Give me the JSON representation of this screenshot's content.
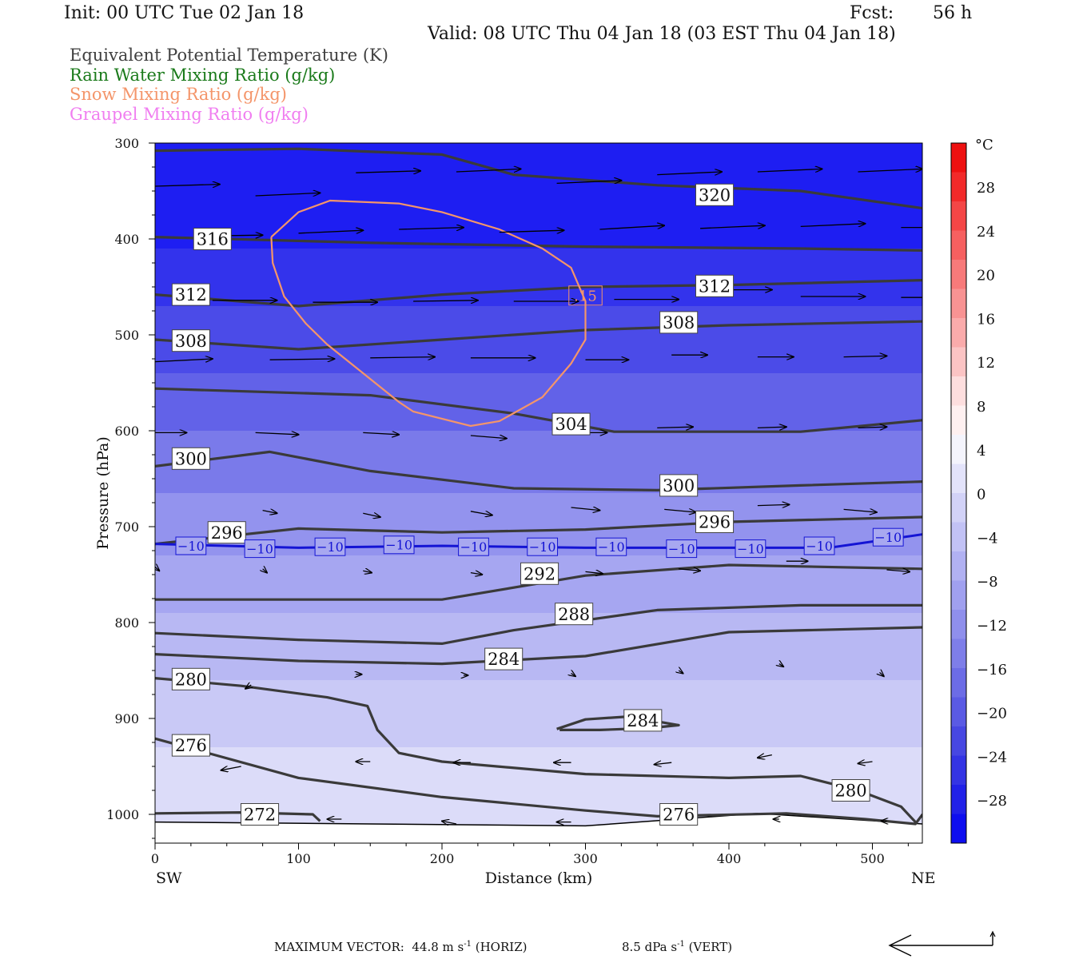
{
  "header": {
    "init": "Init: 00 UTC Tue 02 Jan 18",
    "fcst_label": "Fcst:",
    "fcst_value": "56 h",
    "valid": "Valid: 08 UTC Thu 04 Jan 18 (03 EST Thu 04 Jan 18)"
  },
  "legend": [
    {
      "label": "Equivalent Potential Temperature (K)",
      "color": "#404040"
    },
    {
      "label": "Rain Water Mixing Ratio (g/kg)",
      "color": "#1a7a1a"
    },
    {
      "label": "Snow Mixing Ratio (g/kg)",
      "color": "#f4956a"
    },
    {
      "label": "Graupel Mixing Ratio (g/kg)",
      "color": "#f07ef0"
    }
  ],
  "chart_data": {
    "type": "heatmap",
    "xlabel": "Distance (km)",
    "ylabel": "Pressure (hPa)",
    "xlim": [
      0,
      535
    ],
    "ylim": [
      1030,
      300
    ],
    "x_ticks": [
      "0",
      "100",
      "200",
      "300",
      "400",
      "500"
    ],
    "y_ticks": [
      "300",
      "400",
      "500",
      "600",
      "700",
      "800",
      "900",
      "1000"
    ],
    "left_endpoint": "SW",
    "right_endpoint": "NE",
    "colorbar": {
      "unit": "°C",
      "labels": [
        "28",
        "24",
        "20",
        "16",
        "12",
        "8",
        "4",
        "0",
        "−4",
        "−8",
        "−12",
        "−16",
        "−20",
        "−24",
        "−28"
      ],
      "colors": [
        "#ee1111",
        "#f22a2a",
        "#f44646",
        "#f66060",
        "#f77a7a",
        "#f89393",
        "#faabab",
        "#fbc4c4",
        "#fddede",
        "#fef0f0",
        "#f4f4fc",
        "#e3e3fa",
        "#d2d2f7",
        "#c2c2f5",
        "#b1b1f2",
        "#a0a0ef",
        "#8f8fec",
        "#7e7ee9",
        "#6c6ce6",
        "#5a5ae4",
        "#4747e2",
        "#3434e4",
        "#2121e8",
        "#0e0eef"
      ]
    },
    "background_layers": [
      {
        "p": 300,
        "color": "#1e1ef2"
      },
      {
        "p": 410,
        "color": "#3333ec"
      },
      {
        "p": 470,
        "color": "#4b4be8"
      },
      {
        "p": 540,
        "color": "#6262e8"
      },
      {
        "p": 600,
        "color": "#7a7aea"
      },
      {
        "p": 665,
        "color": "#9393ee"
      },
      {
        "p": 730,
        "color": "#a6a6f1"
      },
      {
        "p": 790,
        "color": "#b8b8f3"
      },
      {
        "p": 860,
        "color": "#c9c9f6"
      },
      {
        "p": 930,
        "color": "#dcdcf9"
      }
    ],
    "theta_e_contours": [
      {
        "value": "320",
        "points": [
          [
            0,
            308
          ],
          [
            100,
            306
          ],
          [
            200,
            312
          ],
          [
            250,
            333
          ],
          [
            350,
            344
          ],
          [
            450,
            350
          ],
          [
            535,
            368
          ]
        ],
        "labels": [
          [
            390,
            354
          ]
        ]
      },
      {
        "value": "316",
        "points": [
          [
            0,
            398
          ],
          [
            150,
            404
          ],
          [
            300,
            408
          ],
          [
            450,
            410
          ],
          [
            535,
            412
          ]
        ],
        "labels": [
          [
            40,
            400
          ]
        ]
      },
      {
        "value": "312",
        "points": [
          [
            0,
            458
          ],
          [
            100,
            470
          ],
          [
            200,
            458
          ],
          [
            300,
            450
          ],
          [
            400,
            448
          ],
          [
            535,
            443
          ]
        ],
        "labels": [
          [
            25,
            458
          ],
          [
            390,
            449
          ]
        ]
      },
      {
        "value": "308",
        "points": [
          [
            0,
            505
          ],
          [
            100,
            515
          ],
          [
            200,
            505
          ],
          [
            300,
            495
          ],
          [
            400,
            490
          ],
          [
            535,
            486
          ]
        ],
        "labels": [
          [
            25,
            506
          ],
          [
            365,
            487
          ]
        ]
      },
      {
        "value": "304",
        "points": [
          [
            0,
            556
          ],
          [
            150,
            563
          ],
          [
            250,
            582
          ],
          [
            320,
            601
          ],
          [
            450,
            601
          ],
          [
            535,
            589
          ]
        ],
        "labels": [
          [
            290,
            593
          ]
        ]
      },
      {
        "value": "300",
        "points": [
          [
            0,
            637
          ],
          [
            80,
            622
          ],
          [
            150,
            642
          ],
          [
            250,
            660
          ],
          [
            350,
            662
          ],
          [
            450,
            657
          ],
          [
            535,
            653
          ]
        ],
        "labels": [
          [
            25,
            629
          ],
          [
            365,
            657
          ]
        ]
      },
      {
        "value": "296",
        "points": [
          [
            0,
            718
          ],
          [
            100,
            702
          ],
          [
            200,
            706
          ],
          [
            300,
            703
          ],
          [
            400,
            695
          ],
          [
            535,
            690
          ]
        ],
        "labels": [
          [
            50,
            706
          ],
          [
            390,
            695
          ]
        ]
      },
      {
        "value": "292",
        "points": [
          [
            0,
            776
          ],
          [
            200,
            776
          ],
          [
            300,
            751
          ],
          [
            400,
            740
          ],
          [
            535,
            744
          ]
        ],
        "labels": [
          [
            268,
            749
          ]
        ]
      },
      {
        "value": "288",
        "points": [
          [
            0,
            811
          ],
          [
            100,
            818
          ],
          [
            200,
            822
          ],
          [
            250,
            808
          ],
          [
            350,
            787
          ],
          [
            450,
            782
          ],
          [
            535,
            782
          ]
        ],
        "labels": [
          [
            292,
            791
          ]
        ]
      },
      {
        "value": "284",
        "points": [
          [
            0,
            833
          ],
          [
            100,
            840
          ],
          [
            200,
            843
          ],
          [
            300,
            835
          ],
          [
            400,
            810
          ],
          [
            535,
            805
          ]
        ],
        "labels": [
          [
            243,
            838
          ]
        ]
      },
      {
        "value": "284",
        "points": [
          [
            280,
            911
          ],
          [
            300,
            901
          ],
          [
            330,
            898
          ],
          [
            365,
            907
          ],
          [
            345,
            910
          ],
          [
            310,
            912
          ],
          [
            282,
            912
          ]
        ],
        "labels": [
          [
            340,
            902
          ]
        ]
      },
      {
        "value": "280",
        "points": [
          [
            0,
            858
          ],
          [
            60,
            866
          ],
          [
            120,
            878
          ],
          [
            148,
            887
          ],
          [
            155,
            912
          ],
          [
            170,
            936
          ],
          [
            200,
            945
          ],
          [
            300,
            958
          ],
          [
            400,
            962
          ],
          [
            450,
            960
          ],
          [
            490,
            975
          ],
          [
            520,
            992
          ],
          [
            530,
            1008
          ]
        ],
        "labels": [
          [
            25,
            859
          ],
          [
            485,
            975
          ]
        ]
      },
      {
        "value": "276",
        "points": [
          [
            0,
            921
          ],
          [
            100,
            962
          ],
          [
            200,
            982
          ],
          [
            300,
            996
          ],
          [
            350,
            1002
          ],
          [
            440,
            999
          ],
          [
            495,
            1005
          ],
          [
            530,
            1010
          ],
          [
            535,
            1000
          ]
        ],
        "labels": [
          [
            25,
            928
          ],
          [
            365,
            1000
          ]
        ]
      },
      {
        "value": "272",
        "points": [
          [
            0,
            999
          ],
          [
            60,
            998
          ],
          [
            110,
            1000
          ],
          [
            115,
            1007
          ]
        ],
        "labels": [
          [
            73,
            1000
          ]
        ]
      }
    ],
    "temperature_contour": {
      "value": "−10",
      "color": "#1414d4",
      "points": [
        [
          0,
          718
        ],
        [
          100,
          722
        ],
        [
          200,
          720
        ],
        [
          300,
          722
        ],
        [
          400,
          722
        ],
        [
          470,
          722
        ],
        [
          535,
          708
        ]
      ],
      "labels": [
        [
          25,
          720
        ],
        [
          73,
          723
        ],
        [
          122,
          721
        ],
        [
          170,
          719
        ],
        [
          222,
          721
        ],
        [
          270,
          721
        ],
        [
          318,
          721
        ],
        [
          367,
          723
        ],
        [
          415,
          723
        ],
        [
          463,
          720
        ],
        [
          511,
          711
        ]
      ]
    },
    "snow_contour": {
      "value": ".15",
      "color": "#f4956a",
      "points": [
        [
          81,
          398
        ],
        [
          100,
          372
        ],
        [
          122,
          360
        ],
        [
          170,
          363
        ],
        [
          200,
          372
        ],
        [
          240,
          390
        ],
        [
          270,
          410
        ],
        [
          290,
          430
        ],
        [
          300,
          465
        ],
        [
          300,
          505
        ],
        [
          290,
          530
        ],
        [
          270,
          565
        ],
        [
          240,
          590
        ],
        [
          220,
          595
        ],
        [
          180,
          580
        ],
        [
          170,
          570
        ],
        [
          145,
          540
        ],
        [
          120,
          510
        ],
        [
          105,
          488
        ],
        [
          90,
          460
        ],
        [
          82,
          425
        ],
        [
          81,
          398
        ]
      ],
      "labels": [
        [
          300,
          459
        ]
      ]
    },
    "wind_vectors": [
      [
        0,
        345,
        45,
        -2
      ],
      [
        70,
        355,
        45,
        -3
      ],
      [
        140,
        331,
        45,
        -2
      ],
      [
        210,
        330,
        45,
        -3
      ],
      [
        280,
        342,
        45,
        -3
      ],
      [
        350,
        333,
        45,
        -3
      ],
      [
        420,
        330,
        45,
        -3
      ],
      [
        490,
        330,
        45,
        -3
      ],
      [
        30,
        397,
        45,
        -1
      ],
      [
        100,
        394,
        45,
        -3
      ],
      [
        170,
        390,
        45,
        -2
      ],
      [
        240,
        393,
        45,
        -2
      ],
      [
        310,
        390,
        45,
        -4
      ],
      [
        380,
        389,
        45,
        -3
      ],
      [
        450,
        387,
        45,
        -3
      ],
      [
        520,
        388,
        20,
        0
      ],
      [
        40,
        464,
        45,
        0
      ],
      [
        110,
        466,
        45,
        0
      ],
      [
        180,
        465,
        45,
        -1
      ],
      [
        250,
        465,
        45,
        0
      ],
      [
        320,
        463,
        45,
        0
      ],
      [
        385,
        453,
        45,
        0
      ],
      [
        450,
        460,
        45,
        0
      ],
      [
        520,
        461,
        20,
        0
      ],
      [
        0,
        528,
        40,
        -3
      ],
      [
        80,
        526,
        45,
        -1
      ],
      [
        150,
        524,
        45,
        -1
      ],
      [
        220,
        524,
        45,
        0
      ],
      [
        300,
        526,
        30,
        0
      ],
      [
        360,
        521,
        25,
        0
      ],
      [
        420,
        523,
        25,
        0
      ],
      [
        480,
        523,
        30,
        -1
      ],
      [
        0,
        602,
        22,
        0
      ],
      [
        70,
        602,
        30,
        2
      ],
      [
        145,
        602,
        25,
        2
      ],
      [
        220,
        605,
        25,
        3
      ],
      [
        290,
        602,
        25,
        0
      ],
      [
        350,
        597,
        25,
        -1
      ],
      [
        420,
        597,
        20,
        -1
      ],
      [
        490,
        597,
        20,
        -1
      ],
      [
        75,
        683,
        10,
        3
      ],
      [
        145,
        686,
        12,
        4
      ],
      [
        220,
        684,
        15,
        4
      ],
      [
        290,
        680,
        20,
        3
      ],
      [
        355,
        682,
        22,
        3
      ],
      [
        420,
        678,
        22,
        -1
      ],
      [
        480,
        682,
        23,
        3
      ],
      [
        0,
        742,
        3,
        4
      ],
      [
        75,
        744,
        3,
        4
      ],
      [
        145,
        746,
        6,
        2
      ],
      [
        220,
        748,
        8,
        2
      ],
      [
        300,
        747,
        12,
        2
      ],
      [
        365,
        744,
        15,
        2
      ],
      [
        440,
        736,
        15,
        0
      ],
      [
        510,
        745,
        16,
        2
      ],
      [
        67,
        865,
        -4,
        4
      ],
      [
        140,
        854,
        4,
        0
      ],
      [
        215,
        855,
        3,
        0
      ],
      [
        290,
        853,
        3,
        3
      ],
      [
        365,
        850,
        3,
        3
      ],
      [
        435,
        843,
        3,
        3
      ],
      [
        505,
        852,
        3,
        4
      ],
      [
        150,
        945,
        -10,
        0
      ],
      [
        220,
        946,
        -12,
        0
      ],
      [
        290,
        946,
        -12,
        0
      ],
      [
        360,
        946,
        -12,
        2
      ],
      [
        430,
        938,
        -10,
        3
      ],
      [
        500,
        945,
        -10,
        2
      ],
      [
        60,
        950,
        -14,
        4
      ],
      [
        130,
        1005,
        -10,
        0
      ],
      [
        210,
        1010,
        -10,
        -3
      ],
      [
        290,
        1008,
        -10,
        0
      ],
      [
        370,
        1007,
        -10,
        0
      ],
      [
        435,
        1005,
        -4,
        0
      ],
      [
        510,
        1007,
        -4,
        0
      ]
    ],
    "reference_vector": {
      "horiz_label": "MAXIMUM VECTOR:  44.8 m s",
      "horiz_unit_sup": "-1",
      "horiz_suffix": " (HORIZ)",
      "vert_label": "8.5 dPa s",
      "vert_unit_sup": "-1",
      "vert_suffix": " (VERT)"
    }
  }
}
